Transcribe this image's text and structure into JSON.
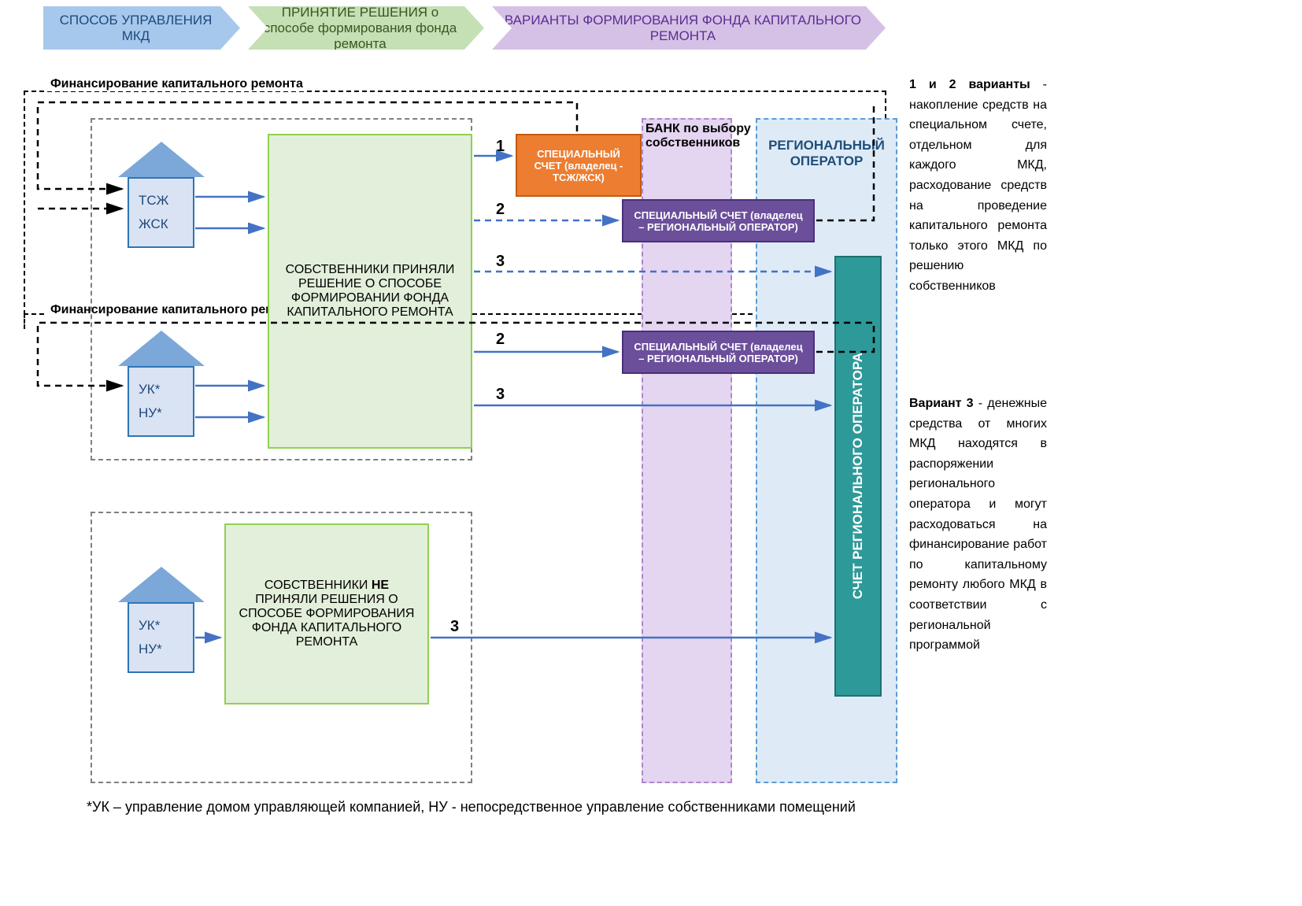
{
  "header": {
    "chevron1": {
      "text": "СПОСОБ УПРАВЛЕНИЯ МКД",
      "fill": "#a6c8ec",
      "border": "#5b9bd5"
    },
    "chevron2": {
      "text": "ПРИНЯТИЕ РЕШЕНИЯ о способе формирования фонда ремонта",
      "fill": "#c5e0b4",
      "border": "#92d050"
    },
    "chevron3": {
      "text": "ВАРИАНТЫ ФОРМИРОВАНИЯ ФОНДА КАПИТАЛЬНОГО РЕМОНТА",
      "fill": "#d6c1e6",
      "border": "#b185c9"
    }
  },
  "labels": {
    "financing1": "Финансирование капитального ремонта",
    "financing2": "Финансирование капитального ремонта",
    "bank": "БАНК по выбору собственников",
    "regionalOperator": "РЕГИОНАЛЬНЫЙ ОПЕРАТОР",
    "footnote": "*УК – управление домом управляющей компанией, НУ - непосредственное управление собственниками помещений"
  },
  "houses": {
    "h1": {
      "line1": "ТСЖ",
      "line2": "ЖСК",
      "roof": "#7ba7d9",
      "body": "#dae3f3",
      "border": "#2e75b6"
    },
    "h2": {
      "line1": "УК*",
      "line2": "НУ*",
      "roof": "#7ba7d9",
      "body": "#dae3f3",
      "border": "#2e75b6"
    },
    "h3": {
      "line1": "УК*",
      "line2": "НУ*",
      "roof": "#7ba7d9",
      "body": "#dae3f3",
      "border": "#2e75b6"
    }
  },
  "greenBoxes": {
    "g1": {
      "text": "СОБСТВЕННИКИ ПРИНЯЛИ РЕШЕНИЕ О СПОСОБЕ ФОРМИРОВАНИИ ФОНДА КАПИТАЛЬНОГО РЕМОНТА",
      "fill": "#e2efda",
      "border": "#92d050"
    },
    "g2": {
      "html": "СОБСТВЕННИКИ <b>НЕ</b> ПРИНЯЛИ РЕШЕНИЯ О СПОСОБЕ ФОРМИРОВАНИЯ ФОНДА КАПИТАЛЬНОГО РЕМОНТА",
      "fill": "#e2efda",
      "border": "#92d050"
    }
  },
  "accountBoxes": {
    "orange": {
      "text": "СПЕЦИАЛЬНЫЙ СЧЕТ (владелец - ТСЖ/ЖСК)",
      "fill": "#ed7d31",
      "border": "#c55a11",
      "textColor": "#ffffff"
    },
    "purple1": {
      "text": "СПЕЦИАЛЬНЫЙ СЧЕТ (владелец – РЕГИОНАЛЬНЫЙ ОПЕРАТОР)",
      "fill": "#6b4f9b",
      "border": "#4a2f7a",
      "textColor": "#ffffff"
    },
    "purple2": {
      "text": "СПЕЦИАЛЬНЫЙ СЧЕТ (владелец – РЕГИОНАЛЬНЫЙ ОПЕРАТОР)",
      "fill": "#6b4f9b",
      "border": "#4a2f7a",
      "textColor": "#ffffff"
    }
  },
  "tealBox": {
    "text": "СЧЕТ РЕГИОНАЛЬНОГО ОПЕРАТОРА",
    "fill": "#2e9999",
    "border": "#1f7070"
  },
  "bankColumn": {
    "fill": "#e4d5f0",
    "border": "#b185c9"
  },
  "regionalColumn": {
    "fill": "#deebf7",
    "border": "#5b9bd5"
  },
  "numbers": {
    "n1": "1",
    "n2a": "2",
    "n2b": "2",
    "n3a": "3",
    "n3b": "3",
    "n3c": "3"
  },
  "sideText": {
    "para1html": "<b>1 и 2 варианты</b> - накопление средств на специальном счете, отдельном для каждого МКД, расходование средств на проведение капитального ремонта только этого МКД по решению собственников",
    "para2html": "<b>Вариант 3</b> - денежные средства от многих МКД находятся в распоряжении регионального оператора и могут расходоваться на финансирование работ по капитальному ремонту любого МКД в соответствии с региональной программой"
  },
  "arrows": {
    "solidColor": "#4472c4",
    "dashedColor": "#4472c4",
    "blackDashColor": "#000000"
  }
}
